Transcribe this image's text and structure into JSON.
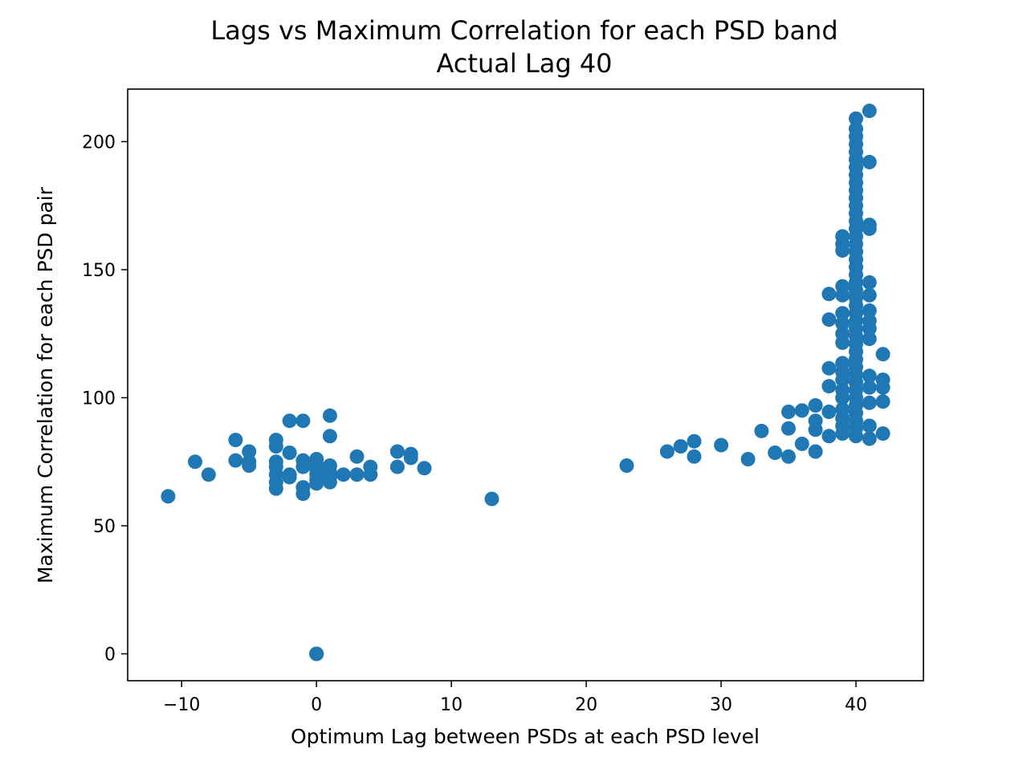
{
  "chart_data": {
    "type": "scatter",
    "title": [
      "Lags vs Maximum Correlation for each PSD band",
      "Actual Lag 40"
    ],
    "xlabel": "Optimum Lag between PSDs at each PSD level",
    "ylabel": "Maximum Correlation for each PSD pair",
    "xlim": [
      -14,
      45
    ],
    "ylim": [
      -10.5,
      220.5
    ],
    "xticks": [
      -10,
      0,
      10,
      20,
      30,
      40
    ],
    "xtick_labels": [
      "−10",
      "0",
      "10",
      "20",
      "30",
      "40"
    ],
    "yticks": [
      0,
      50,
      100,
      150,
      200
    ],
    "ytick_labels": [
      "0",
      "50",
      "100",
      "150",
      "200"
    ],
    "grid": false,
    "color": "#1f77b4",
    "points": [
      [
        -11,
        61.5
      ],
      [
        -9,
        75
      ],
      [
        -8,
        70
      ],
      [
        -6,
        83.5
      ],
      [
        -6,
        75.5
      ],
      [
        -5,
        79
      ],
      [
        -5,
        75
      ],
      [
        -5,
        73.5
      ],
      [
        -3,
        83.5
      ],
      [
        -3,
        81
      ],
      [
        -3,
        75
      ],
      [
        -3,
        73
      ],
      [
        -3,
        70
      ],
      [
        -3,
        67
      ],
      [
        -3,
        64.5
      ],
      [
        -2,
        91
      ],
      [
        -2,
        78.5
      ],
      [
        -2,
        70
      ],
      [
        -2,
        69
      ],
      [
        -1,
        91
      ],
      [
        -1,
        75.5
      ],
      [
        -1,
        73
      ],
      [
        -1,
        65
      ],
      [
        -1,
        62.5
      ],
      [
        0,
        76
      ],
      [
        0,
        74
      ],
      [
        0,
        72
      ],
      [
        0,
        70
      ],
      [
        0,
        68
      ],
      [
        0,
        66.5
      ],
      [
        1,
        93
      ],
      [
        1,
        85
      ],
      [
        1,
        73.5
      ],
      [
        1,
        71
      ],
      [
        1,
        69
      ],
      [
        1,
        67
      ],
      [
        2,
        70
      ],
      [
        3,
        77
      ],
      [
        3,
        70
      ],
      [
        4,
        73
      ],
      [
        4,
        70
      ],
      [
        6,
        79
      ],
      [
        6,
        73
      ],
      [
        7,
        78
      ],
      [
        7,
        76.5
      ],
      [
        8,
        72.5
      ],
      [
        13,
        60.5
      ],
      [
        23,
        73.5
      ],
      [
        26,
        79
      ],
      [
        27,
        81
      ],
      [
        28,
        83
      ],
      [
        28,
        77
      ],
      [
        30,
        81.5
      ],
      [
        32,
        76
      ],
      [
        33,
        87
      ],
      [
        34,
        78.5
      ],
      [
        35,
        94.5
      ],
      [
        35,
        88
      ],
      [
        35,
        77
      ],
      [
        36,
        95
      ],
      [
        36,
        82
      ],
      [
        37,
        97
      ],
      [
        37,
        91
      ],
      [
        37,
        87.5
      ],
      [
        37,
        79
      ],
      [
        38,
        140.5
      ],
      [
        38,
        130.5
      ],
      [
        38,
        111.5
      ],
      [
        38,
        104.5
      ],
      [
        38,
        94.5
      ],
      [
        38,
        85
      ],
      [
        39,
        163
      ],
      [
        39,
        160
      ],
      [
        39,
        157.5
      ],
      [
        39,
        143.5
      ],
      [
        39,
        140
      ],
      [
        39,
        133
      ],
      [
        39,
        129
      ],
      [
        39,
        125
      ],
      [
        39,
        121.5
      ],
      [
        39,
        113.5
      ],
      [
        39,
        110
      ],
      [
        39,
        107
      ],
      [
        39,
        103
      ],
      [
        39,
        100
      ],
      [
        39,
        95.5
      ],
      [
        39,
        92
      ],
      [
        39,
        89
      ],
      [
        39,
        86
      ],
      [
        40,
        209
      ],
      [
        40,
        205
      ],
      [
        40,
        202
      ],
      [
        40,
        199
      ],
      [
        40,
        196
      ],
      [
        40,
        193
      ],
      [
        40,
        190
      ],
      [
        40,
        187
      ],
      [
        40,
        184
      ],
      [
        40,
        181
      ],
      [
        40,
        178
      ],
      [
        40,
        175
      ],
      [
        40,
        172
      ],
      [
        40,
        169
      ],
      [
        40,
        166
      ],
      [
        40,
        163
      ],
      [
        40,
        160
      ],
      [
        40,
        157
      ],
      [
        40,
        154
      ],
      [
        40,
        151
      ],
      [
        40,
        148
      ],
      [
        40,
        145
      ],
      [
        40,
        142
      ],
      [
        40,
        139
      ],
      [
        40,
        136
      ],
      [
        40,
        133
      ],
      [
        40,
        130
      ],
      [
        40,
        127
      ],
      [
        40,
        124
      ],
      [
        40,
        121
      ],
      [
        40,
        118
      ],
      [
        40,
        115
      ],
      [
        40,
        112
      ],
      [
        40,
        109
      ],
      [
        40,
        106
      ],
      [
        40,
        103
      ],
      [
        40,
        100
      ],
      [
        40,
        97
      ],
      [
        40,
        94
      ],
      [
        40,
        91
      ],
      [
        40,
        88
      ],
      [
        40,
        85
      ],
      [
        41,
        212
      ],
      [
        41,
        192
      ],
      [
        41,
        167.5
      ],
      [
        41,
        166
      ],
      [
        41,
        145
      ],
      [
        41,
        140
      ],
      [
        41,
        134
      ],
      [
        41,
        130
      ],
      [
        41,
        127
      ],
      [
        41,
        123
      ],
      [
        41,
        108.5
      ],
      [
        41,
        104
      ],
      [
        41,
        98
      ],
      [
        41,
        89
      ],
      [
        41,
        84
      ],
      [
        42,
        117
      ],
      [
        42,
        107
      ],
      [
        42,
        104
      ],
      [
        42,
        98.5
      ],
      [
        42,
        86
      ],
      [
        0,
        0
      ],
      [
        0,
        0
      ],
      [
        0,
        0
      ]
    ]
  }
}
